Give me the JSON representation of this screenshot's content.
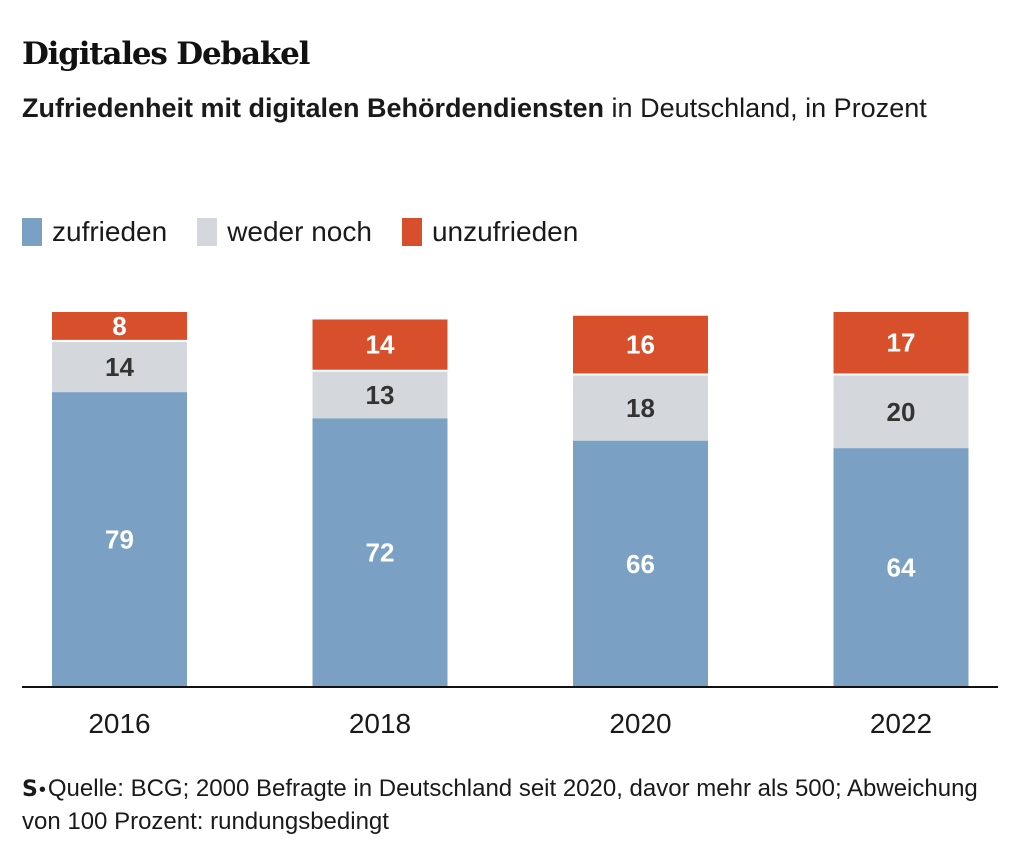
{
  "header": {
    "title": "Digitales Debakel",
    "subtitle_bold": "Zufriedenheit mit digitalen Behördendiensten",
    "subtitle_rest": " in Deutschland, in Prozent"
  },
  "footer": {
    "logo": "S",
    "dot": "•",
    "source": "Quelle: BCG; 2000 Befragte in Deutschland seit 2020, davor mehr als 500; Abweichung von 100 Prozent: rundungsbedingt"
  },
  "chart_data": {
    "type": "bar",
    "stacked": true,
    "categories": [
      "2016",
      "2018",
      "2020",
      "2022"
    ],
    "series": [
      {
        "name": "zufrieden",
        "color": "#7aa0c4",
        "label_color": "#ffffff",
        "values": [
          79,
          72,
          66,
          64
        ]
      },
      {
        "name": "weder noch",
        "color": "#d4d8dc",
        "label_color": "#333333",
        "values": [
          14,
          13,
          18,
          20
        ]
      },
      {
        "name": "unzufrieden",
        "color": "#d7502b",
        "label_color": "#ffffff",
        "values": [
          8,
          14,
          16,
          17
        ]
      }
    ],
    "ylim": [
      0,
      101
    ],
    "grid": false,
    "legend_position": "top-left",
    "data_labels": true
  }
}
